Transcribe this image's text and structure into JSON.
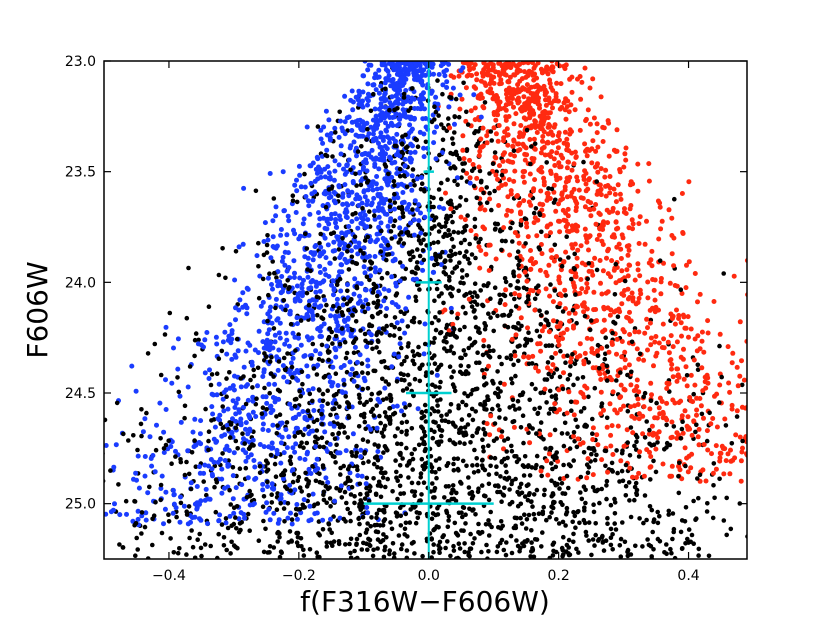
{
  "chart_data": {
    "type": "scatter",
    "title": "",
    "xlabel": "f(F316W−F606W)",
    "ylabel": "F606W",
    "xlim": [
      -0.5,
      0.49
    ],
    "ylim": [
      25.25,
      23.0
    ],
    "y_inverted": true,
    "grid": false,
    "xticks": [
      -0.4,
      -0.2,
      0.0,
      0.2,
      0.4
    ],
    "xtick_labels": [
      "−0.4",
      "−0.2",
      "0.0",
      "0.2",
      "0.4"
    ],
    "yticks": [
      23.0,
      23.5,
      24.0,
      24.5,
      25.0
    ],
    "ytick_labels": [
      "23.0",
      "23.5",
      "24.0",
      "24.5",
      "25.0"
    ],
    "series": [
      {
        "color": "#000000",
        "n_points": 2600,
        "distribution": "centered near 0.0 over full color range, dense toward fainter magnitudes; points ramp in from about 23.0 to 25.25"
      },
      {
        "color": "#1a3cff",
        "n_points": 1700,
        "distribution": "blue-side sequence running from about -0.03 at 23.0 to about -0.3 at 25.0; concentrated at brighter magnitudes"
      },
      {
        "color": "#ff2a10",
        "n_points": 1500,
        "distribution": "red-side sequence running from about +0.12 at 23.0 to about +0.42 at 24.8; only at brighter magnitudes"
      }
    ],
    "vertical_line": {
      "x": 0.0,
      "color": "#00d0d0"
    },
    "error_bars": [
      {
        "y": 23.5,
        "xerr": 0.008
      },
      {
        "y": 24.0,
        "xerr": 0.02
      },
      {
        "y": 24.5,
        "xerr": 0.035
      },
      {
        "y": 25.0,
        "xerr": 0.1
      }
    ],
    "errorbar_color": "#00d0d0"
  }
}
